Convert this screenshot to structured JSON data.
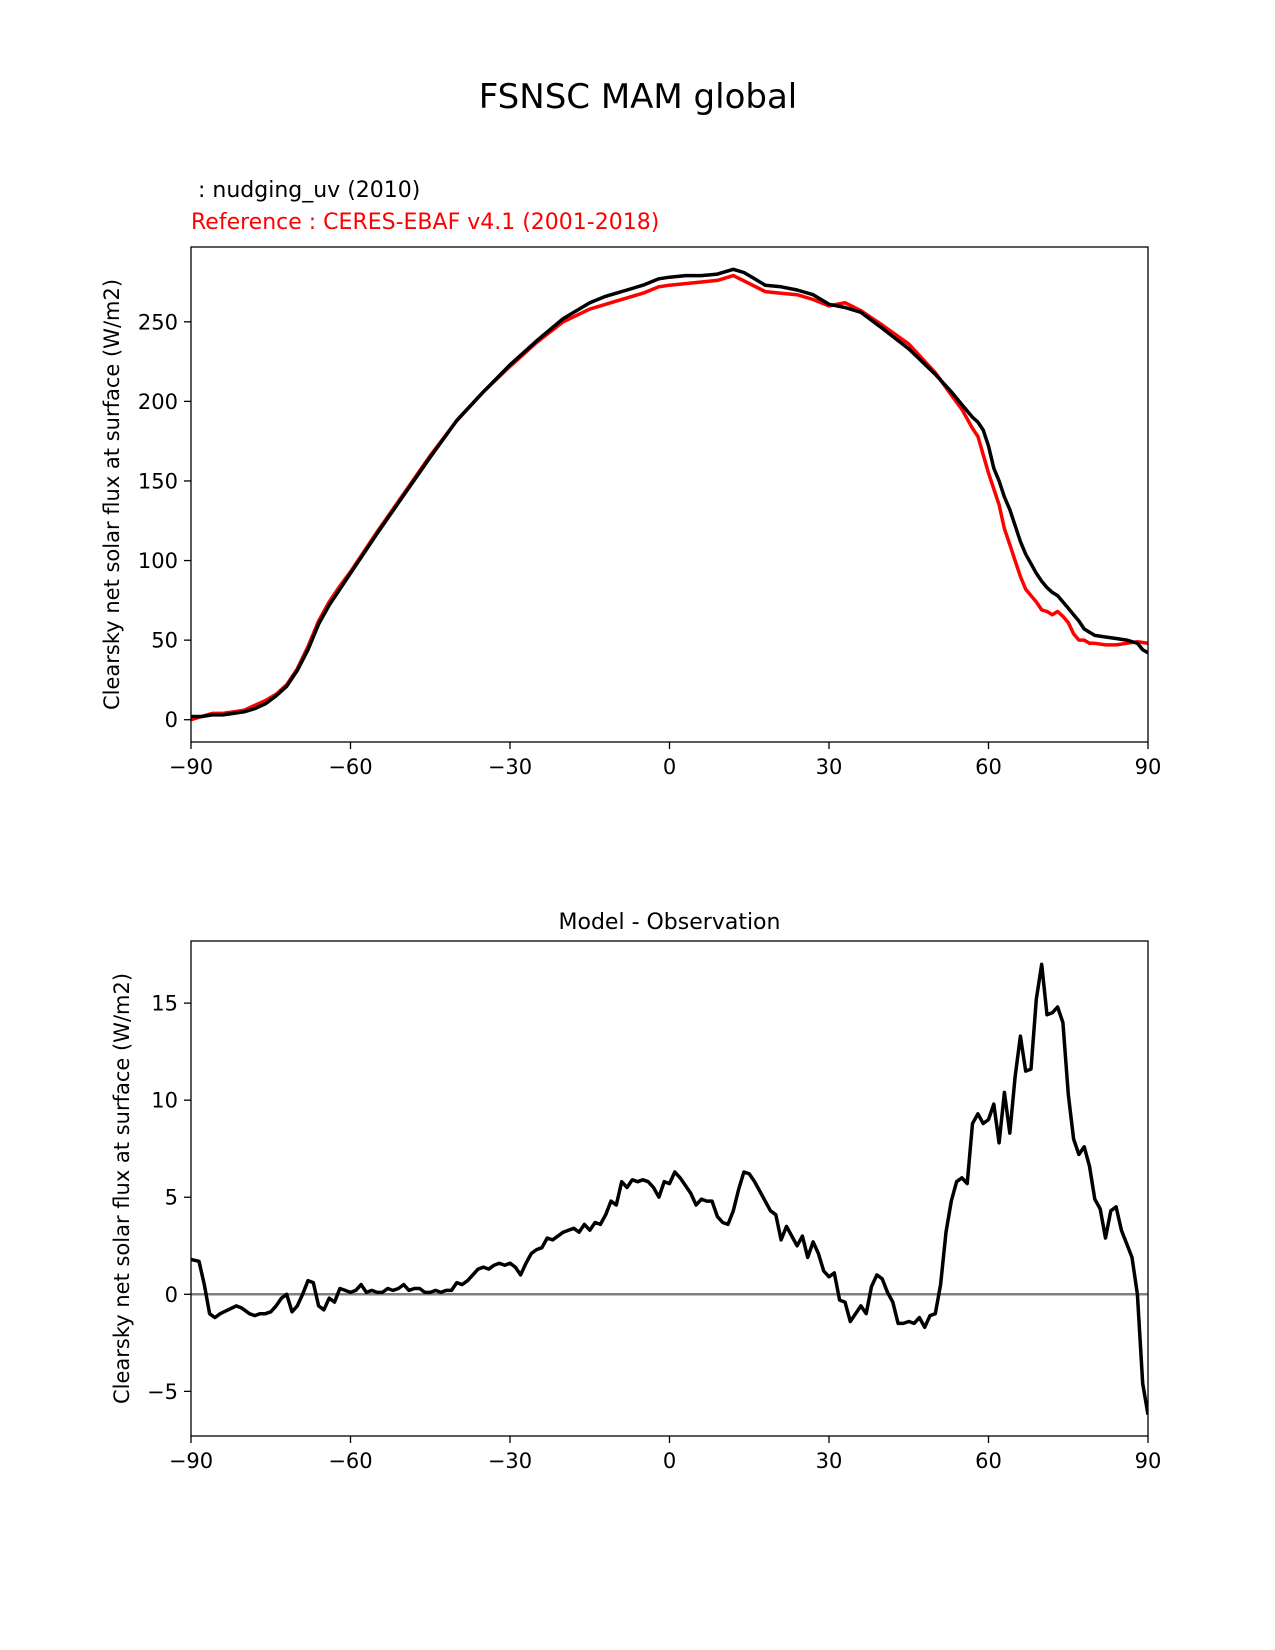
{
  "figure": {
    "title": "FSNSC MAM global",
    "test_label": " : nudging_uv (2010)",
    "reference_label": "Reference : CERES-EBAF v4.1 (2001-2018)",
    "colors": {
      "test": "#000000",
      "reference": "#ff0000",
      "zero_line": "#808080"
    }
  },
  "chart_data": [
    {
      "type": "line",
      "title": "",
      "xlabel": "",
      "ylabel": "Clearsky net solar flux at surface (W/m2)",
      "xlim": [
        -90,
        90
      ],
      "ylim": [
        -14,
        297
      ],
      "xticks": [
        -90,
        -60,
        -30,
        0,
        30,
        60,
        90
      ],
      "xtick_labels": [
        "−90",
        "−60",
        "−30",
        "0",
        "30",
        "60",
        "90"
      ],
      "yticks": [
        0,
        50,
        100,
        150,
        200,
        250
      ],
      "ytick_labels": [
        "0",
        "50",
        "100",
        "150",
        "200",
        "250"
      ],
      "grid": false,
      "series": [
        {
          "name": "",
          "color": "#ff0000",
          "x": [
            -90,
            -88,
            -86,
            -84,
            -82,
            -80,
            -78,
            -76,
            -74,
            -72,
            -70,
            -68,
            -66,
            -64,
            -62,
            -60,
            -55,
            -50,
            -45,
            -40,
            -35,
            -30,
            -25,
            -20,
            -15,
            -12,
            -10,
            -8,
            -5,
            -2,
            0,
            3,
            6,
            9,
            12,
            15,
            18,
            21,
            24,
            27,
            30,
            33,
            36,
            40,
            45,
            50,
            53,
            55,
            57,
            58,
            60,
            61,
            62,
            63,
            64,
            65,
            66,
            67,
            68,
            69,
            70,
            71,
            72,
            73,
            74,
            75,
            76,
            77,
            78,
            79,
            80,
            82,
            84,
            86,
            88,
            90
          ],
          "y": [
            0,
            2,
            4,
            4,
            5,
            6,
            9,
            12,
            16,
            22,
            32,
            46,
            62,
            74,
            84,
            93,
            118,
            142,
            166,
            188,
            206,
            222,
            237,
            250,
            258,
            261,
            263,
            265,
            268,
            272,
            273,
            274,
            275,
            276,
            279,
            274,
            269,
            268,
            267,
            264,
            260,
            262,
            257,
            248,
            236,
            218,
            204,
            195,
            183,
            178,
            155,
            145,
            135,
            120,
            110,
            100,
            90,
            82,
            78,
            74,
            69,
            68,
            66,
            68,
            65,
            61,
            54,
            50,
            50,
            48,
            48,
            47,
            47,
            48,
            49,
            48
          ]
        },
        {
          "name": "",
          "color": "#000000",
          "x": [
            -90,
            -88,
            -86,
            -84,
            -82,
            -80,
            -78,
            -76,
            -74,
            -72,
            -70,
            -68,
            -66,
            -64,
            -62,
            -60,
            -55,
            -50,
            -45,
            -40,
            -35,
            -30,
            -25,
            -20,
            -15,
            -12,
            -10,
            -8,
            -5,
            -2,
            0,
            3,
            6,
            9,
            12,
            14,
            16,
            18,
            21,
            24,
            27,
            30,
            33,
            36,
            40,
            45,
            50,
            53,
            55,
            57,
            58,
            59,
            60,
            61,
            62,
            63,
            64,
            65,
            66,
            67,
            68,
            69,
            70,
            71,
            72,
            73,
            74,
            75,
            76,
            77,
            78,
            79,
            80,
            82,
            84,
            86,
            88,
            89,
            90
          ],
          "y": [
            2,
            2,
            3,
            3,
            4,
            5,
            7,
            10,
            15,
            21,
            31,
            44,
            60,
            72,
            82,
            92,
            117,
            141,
            165,
            188,
            206,
            223,
            238,
            252,
            262,
            266,
            268,
            270,
            273,
            277,
            278,
            279,
            279,
            280,
            283,
            281,
            277,
            273,
            272,
            270,
            267,
            261,
            259,
            256,
            246,
            233,
            217,
            206,
            198,
            190,
            187,
            182,
            172,
            158,
            150,
            140,
            132,
            122,
            112,
            104,
            98,
            92,
            87,
            83,
            80,
            78,
            74,
            70,
            66,
            62,
            57,
            55,
            53,
            52,
            51,
            50,
            48,
            44,
            42
          ]
        }
      ]
    },
    {
      "type": "line",
      "title": "Model - Observation",
      "xlabel": "",
      "ylabel": "Clearsky net solar flux at surface (W/m2)",
      "xlim": [
        -90,
        90
      ],
      "ylim": [
        -7.3,
        18.2
      ],
      "xticks": [
        -90,
        -60,
        -30,
        0,
        30,
        60,
        90
      ],
      "xtick_labels": [
        "−90",
        "−60",
        "−30",
        "0",
        "30",
        "60",
        "90"
      ],
      "yticks": [
        -5,
        0,
        5,
        10,
        15
      ],
      "ytick_labels": [
        "−5",
        "0",
        "5",
        "10",
        "15"
      ],
      "grid": false,
      "zero_line": true,
      "series": [
        {
          "name": "",
          "color": "#000000",
          "x": [
            -90,
            -88.5,
            -87.5,
            -86.5,
            -85.5,
            -84.5,
            -83,
            -81.5,
            -80.5,
            -79,
            -78,
            -77,
            -76,
            -75,
            -74,
            -73,
            -72,
            -71,
            -70,
            -69,
            -68,
            -67,
            -66,
            -65,
            -64,
            -63,
            -62,
            -61,
            -60,
            -59,
            -58,
            -57,
            -56,
            -55,
            -54,
            -53,
            -52,
            -51,
            -50,
            -49,
            -48,
            -47,
            -46,
            -45,
            -44,
            -43,
            -42,
            -41,
            -40,
            -39,
            -38,
            -37,
            -36,
            -35,
            -34,
            -33,
            -32,
            -31,
            -30,
            -29,
            -28,
            -27,
            -26,
            -25,
            -24,
            -23,
            -22,
            -21,
            -20,
            -19,
            -18,
            -17,
            -16,
            -15,
            -14,
            -13,
            -12,
            -11,
            -10,
            -9,
            -8,
            -7,
            -6,
            -5,
            -4,
            -3,
            -2,
            -1,
            0,
            1,
            2,
            3,
            4,
            5,
            6,
            7,
            8,
            9,
            10,
            11,
            12,
            13,
            14,
            15,
            16,
            17,
            18,
            19,
            20,
            21,
            22,
            23,
            24,
            25,
            26,
            27,
            28,
            29,
            30,
            31,
            32,
            33,
            34,
            35,
            36,
            37,
            38,
            39,
            40,
            41,
            42,
            43,
            44,
            45,
            46,
            47,
            48,
            49,
            50,
            51,
            52,
            53,
            54,
            55,
            56,
            57,
            58,
            59,
            60,
            61,
            62,
            63,
            64,
            65,
            66,
            67,
            68,
            69,
            70,
            71,
            72,
            73,
            74,
            75,
            76,
            77,
            78,
            79,
            80,
            81,
            82,
            83,
            84,
            85,
            86,
            87,
            88,
            89,
            90
          ],
          "y": [
            1.8,
            1.7,
            0.5,
            -1.0,
            -1.2,
            -1.0,
            -0.8,
            -0.6,
            -0.7,
            -1.0,
            -1.1,
            -1.0,
            -1.0,
            -0.9,
            -0.6,
            -0.2,
            0.0,
            -0.9,
            -0.6,
            0.0,
            0.7,
            0.6,
            -0.6,
            -0.8,
            -0.2,
            -0.4,
            0.3,
            0.2,
            0.1,
            0.2,
            0.5,
            0.1,
            0.2,
            0.1,
            0.1,
            0.3,
            0.2,
            0.3,
            0.5,
            0.2,
            0.3,
            0.3,
            0.1,
            0.1,
            0.2,
            0.1,
            0.2,
            0.2,
            0.6,
            0.5,
            0.7,
            1.0,
            1.3,
            1.4,
            1.3,
            1.5,
            1.6,
            1.5,
            1.6,
            1.4,
            1.0,
            1.6,
            2.1,
            2.3,
            2.4,
            2.9,
            2.8,
            3.0,
            3.2,
            3.3,
            3.4,
            3.2,
            3.6,
            3.3,
            3.7,
            3.6,
            4.1,
            4.8,
            4.6,
            5.8,
            5.5,
            5.9,
            5.8,
            5.9,
            5.8,
            5.5,
            5.0,
            5.8,
            5.7,
            6.3,
            6.0,
            5.6,
            5.2,
            4.6,
            4.9,
            4.8,
            4.8,
            4.0,
            3.7,
            3.6,
            4.3,
            5.4,
            6.3,
            6.2,
            5.8,
            5.3,
            4.8,
            4.3,
            4.1,
            2.8,
            3.5,
            3.0,
            2.5,
            3.0,
            1.9,
            2.7,
            2.1,
            1.2,
            0.9,
            1.1,
            -0.3,
            -0.4,
            -1.4,
            -1.0,
            -0.6,
            -1.0,
            0.4,
            1.0,
            0.8,
            0.1,
            -0.4,
            -1.5,
            -1.5,
            -1.4,
            -1.5,
            -1.2,
            -1.7,
            -1.1,
            -1.0,
            0.5,
            3.2,
            4.8,
            5.8,
            6.0,
            5.7,
            8.8,
            9.3,
            8.8,
            9.0,
            9.8,
            7.8,
            10.4,
            8.3,
            11.2,
            13.3,
            11.5,
            11.6,
            15.2,
            17.0,
            14.4,
            14.5,
            14.8,
            14.0,
            10.3,
            8.0,
            7.2,
            7.6,
            6.6,
            4.9,
            4.4,
            2.9,
            4.3,
            4.5,
            3.3,
            2.6,
            1.9,
            0.0,
            -4.6,
            -6.2
          ]
        }
      ]
    }
  ]
}
